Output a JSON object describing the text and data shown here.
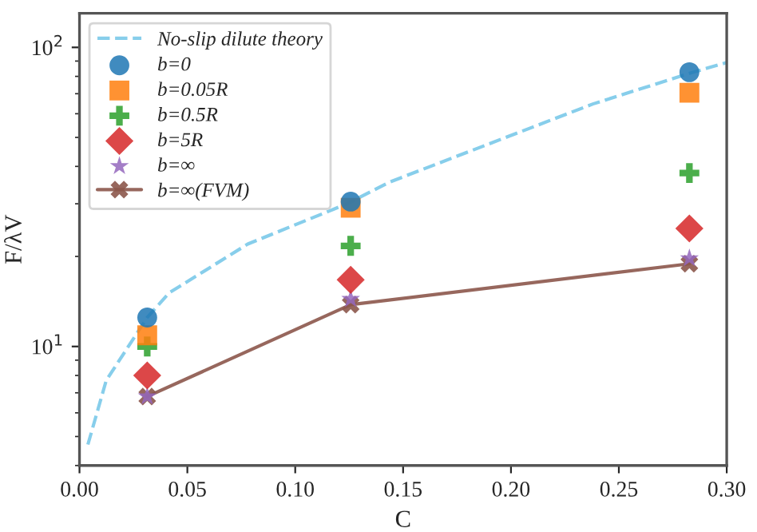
{
  "chart_data": {
    "type": "scatter",
    "xlabel": "C",
    "ylabel": "F/λV",
    "log": "y",
    "grid": false,
    "legend": "top left",
    "xlim": [
      0,
      0.3
    ],
    "xticks": [
      {
        "value": 0,
        "label": "0.00"
      },
      {
        "value": 0.05,
        "label": "0.05"
      },
      {
        "value": 0.1,
        "label": "0.10"
      },
      {
        "value": 0.15,
        "label": "0.15"
      },
      {
        "value": 0.2,
        "label": "0.20"
      },
      {
        "value": 0.25,
        "label": "0.25"
      },
      {
        "value": 0.3,
        "label": "0.30"
      }
    ],
    "ylim": [
      4,
      130
    ],
    "yticks": [
      {
        "value": 10,
        "label": "10$^{1}$"
      },
      {
        "value": 100,
        "label": "10$^{2}$"
      }
    ],
    "series": [
      {
        "name": "No-slip dilute theory",
        "type": "line",
        "line_style": "dashed",
        "marker": "none",
        "color": "#87ceeb",
        "x": [
          0.0039,
          0.0124,
          0.0314,
          0.0415,
          0.078,
          0.124,
          0.1435,
          0.238,
          0.283,
          0.3
        ],
        "values": [
          4.7,
          7.7,
          12.5,
          15.1,
          22,
          30,
          35.4,
          64.7,
          82,
          89
        ]
      },
      {
        "name": "b=0",
        "marker": "circle",
        "color": "#1f77b4",
        "x": [
          0.0314,
          0.1257,
          0.2827
        ],
        "values": [
          12.5,
          30.5,
          82.6
        ]
      },
      {
        "name": "b=0.05R",
        "marker": "square",
        "color": "#ff7f0e",
        "x": [
          0.0314,
          0.1257,
          0.2827
        ],
        "values": [
          10.9,
          29.1,
          70.5
        ]
      },
      {
        "name": "b=0.5R",
        "marker": "cross",
        "color": "#2ca02c",
        "x": [
          0.0314,
          0.1257,
          0.2827
        ],
        "values": [
          10.0,
          21.7,
          38.0
        ]
      },
      {
        "name": "b=5R",
        "marker": "diamond",
        "color": "#d62728",
        "x": [
          0.0314,
          0.1257,
          0.2827
        ],
        "values": [
          8.0,
          16.7,
          24.8
        ]
      },
      {
        "name": "b=∞",
        "marker": "star",
        "color": "#9467bd",
        "x": [
          0.0314,
          0.1257,
          0.2827
        ],
        "values": [
          6.8,
          14.4,
          19.7
        ]
      },
      {
        "name": "b=∞(FVM)",
        "type": "line",
        "line_style": "solid",
        "marker": "x",
        "color": "#8c564b",
        "x": [
          0.0314,
          0.1257,
          0.2827
        ],
        "values": [
          6.8,
          13.8,
          18.9
        ]
      }
    ]
  }
}
